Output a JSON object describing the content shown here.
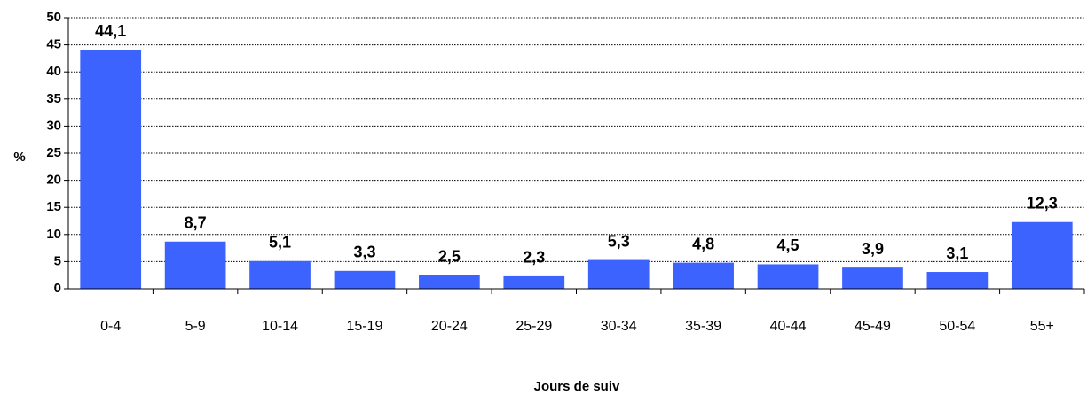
{
  "chart_data": {
    "type": "bar",
    "ylabel": "%",
    "xlabel": "Jours de suiv",
    "categories": [
      "0-4",
      "5-9",
      "10-14",
      "15-19",
      "20-24",
      "25-29",
      "30-34",
      "35-39",
      "40-44",
      "45-49",
      "50-54",
      "55+"
    ],
    "values": [
      44.1,
      8.7,
      5.1,
      3.3,
      2.5,
      2.3,
      5.3,
      4.8,
      4.5,
      3.9,
      3.1,
      12.3
    ],
    "value_labels": [
      "44,1",
      "8,7",
      "5,1",
      "3,3",
      "2,5",
      "2,3",
      "5,3",
      "4,8",
      "4,5",
      "3,9",
      "3,1",
      "12,3"
    ],
    "color": "#3d63ff",
    "ylim": [
      0,
      50
    ],
    "yticks": [
      0,
      5,
      10,
      15,
      20,
      25,
      30,
      35,
      40,
      45,
      50
    ],
    "grid": true
  }
}
